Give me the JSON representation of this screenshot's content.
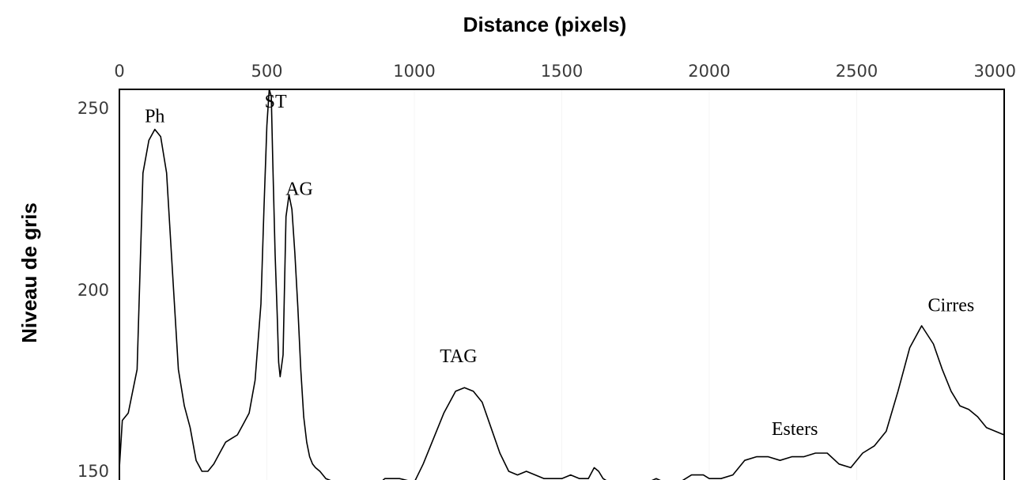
{
  "chart_data": {
    "type": "line",
    "title": "",
    "xlabel": "Distance (pixels)",
    "ylabel": "Niveau de gris",
    "x_axis_position": "top",
    "xlim": [
      0,
      3000
    ],
    "ylim": [
      150,
      255
    ],
    "x_ticks": [
      "0",
      "500",
      "1000",
      "1500",
      "2000",
      "2500",
      "3000"
    ],
    "y_ticks": [
      "150",
      "200",
      "250"
    ],
    "grid": false,
    "legend": "none",
    "line_color": "#000000",
    "series": [
      {
        "x": [
          0,
          10,
          30,
          60,
          80,
          100,
          120,
          140,
          160,
          180,
          200,
          220,
          240,
          260,
          280,
          300,
          320,
          340,
          360,
          380,
          400,
          420,
          440,
          460,
          480,
          490,
          500,
          508,
          515,
          520,
          528,
          535,
          540,
          545,
          555,
          565,
          575,
          585,
          595,
          605,
          615,
          625,
          635,
          645,
          655,
          665,
          680,
          700,
          730,
          760,
          800,
          840,
          880,
          900,
          950,
          1000,
          1030,
          1060,
          1100,
          1140,
          1170,
          1200,
          1230,
          1260,
          1290,
          1320,
          1350,
          1380,
          1410,
          1440,
          1470,
          1500,
          1530,
          1560,
          1590,
          1610,
          1625,
          1640,
          1660,
          1700,
          1740,
          1780,
          1820,
          1860,
          1900,
          1940,
          1980,
          2000,
          2040,
          2080,
          2120,
          2160,
          2200,
          2240,
          2280,
          2320,
          2360,
          2400,
          2440,
          2480,
          2520,
          2560,
          2600,
          2640,
          2680,
          2720,
          2760,
          2790,
          2820,
          2850,
          2880,
          2910,
          2940,
          2970,
          3000
        ],
        "y": [
          151,
          164,
          166,
          178,
          232,
          241,
          244,
          242,
          232,
          205,
          178,
          168,
          162,
          153,
          150,
          150,
          152,
          155,
          158,
          159,
          160,
          163,
          166,
          175,
          196,
          222,
          245,
          255,
          253,
          235,
          210,
          193,
          180,
          176,
          182,
          220,
          226,
          222,
          210,
          195,
          178,
          165,
          158,
          154,
          152,
          151,
          150,
          148,
          147,
          147,
          146,
          147,
          146,
          148,
          148,
          147,
          152,
          158,
          166,
          172,
          173,
          172,
          169,
          162,
          155,
          150,
          149,
          150,
          149,
          148,
          148,
          148,
          149,
          148,
          148,
          151,
          150,
          148,
          147,
          146,
          147,
          146,
          148,
          146,
          147,
          149,
          149,
          148,
          148,
          149,
          153,
          154,
          154,
          153,
          154,
          154,
          155,
          155,
          152,
          151,
          155,
          157,
          161,
          172,
          184,
          190,
          185,
          178,
          172,
          168,
          167,
          165,
          162,
          161,
          160
        ]
      }
    ],
    "annotations": [
      {
        "text": "Ph",
        "x": 120,
        "y": 246
      },
      {
        "text": "ST",
        "x": 530,
        "y": 250
      },
      {
        "text": "AG",
        "x": 610,
        "y": 226
      },
      {
        "text": "TAG",
        "x": 1150,
        "y": 180
      },
      {
        "text": "Esters",
        "x": 2290,
        "y": 160
      },
      {
        "text": "Cirres",
        "x": 2820,
        "y": 194
      }
    ]
  }
}
